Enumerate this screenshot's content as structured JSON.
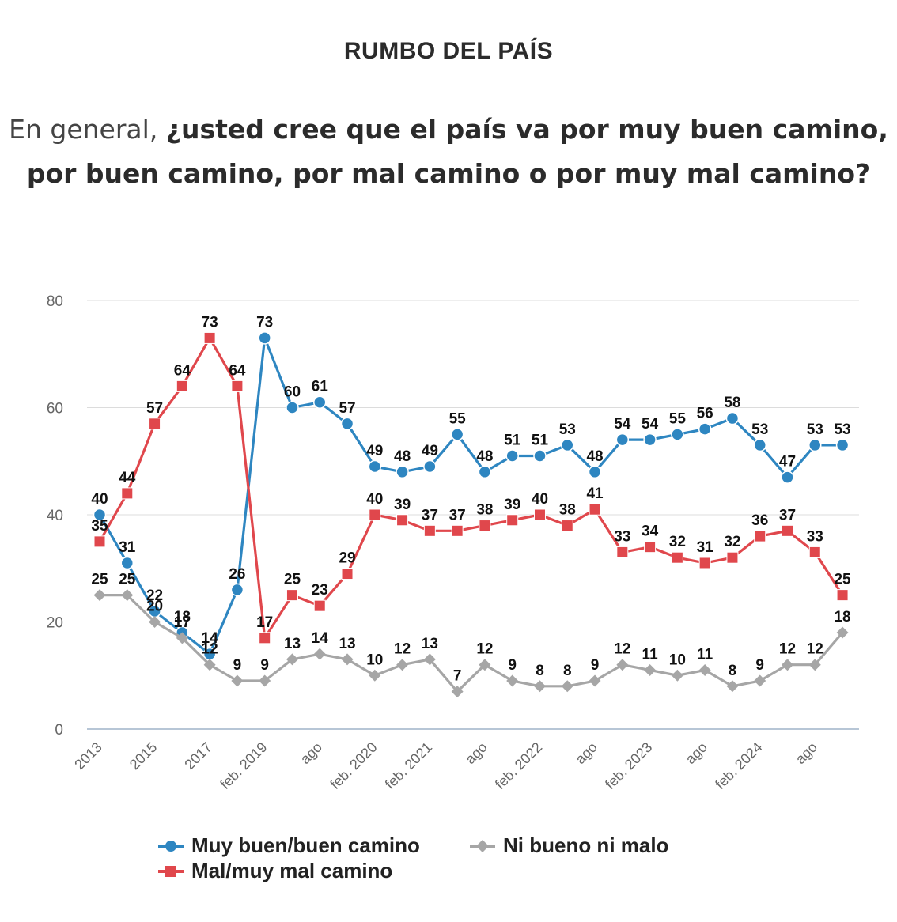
{
  "title": "RUMBO DEL PAÍS",
  "question": {
    "normal": "En general, ",
    "bold": "¿usted cree que el país va por muy buen camino, por buen camino, por mal camino o por muy mal camino?"
  },
  "chart_data": {
    "type": "line",
    "ylim": [
      0,
      80
    ],
    "yticks": [
      0,
      20,
      40,
      60,
      80
    ],
    "grid": true,
    "legend": "bottom",
    "x_labels": [
      "2013",
      "",
      "2015",
      "",
      "2017",
      "",
      "feb. 2019",
      "",
      "ago",
      "",
      "feb. 2020",
      "",
      "feb. 2021",
      "",
      "ago",
      "",
      "feb. 2022",
      "",
      "ago",
      "",
      "feb. 2023",
      "",
      "ago",
      "",
      "feb. 2024",
      "",
      "ago",
      ""
    ],
    "series": [
      {
        "name": "Muy buen/buen camino",
        "color": "#2e86c1",
        "marker": "circle",
        "values": [
          40,
          31,
          22,
          18,
          14,
          26,
          73,
          60,
          61,
          57,
          49,
          48,
          49,
          55,
          48,
          51,
          51,
          53,
          48,
          54,
          54,
          55,
          56,
          58,
          53,
          47,
          53,
          53
        ]
      },
      {
        "name": "Mal/muy mal camino",
        "color": "#e0474c",
        "marker": "square",
        "values": [
          35,
          44,
          57,
          64,
          73,
          64,
          17,
          25,
          23,
          29,
          40,
          39,
          37,
          37,
          38,
          39,
          40,
          38,
          41,
          33,
          34,
          32,
          31,
          32,
          36,
          37,
          33,
          25
        ]
      },
      {
        "name": "Ni bueno ni malo",
        "color": "#a6a6a6",
        "marker": "diamond",
        "values": [
          25,
          25,
          20,
          17,
          12,
          9,
          9,
          13,
          14,
          13,
          10,
          12,
          13,
          7,
          12,
          9,
          8,
          8,
          9,
          12,
          11,
          10,
          11,
          8,
          9,
          12,
          12,
          18
        ]
      }
    ]
  }
}
